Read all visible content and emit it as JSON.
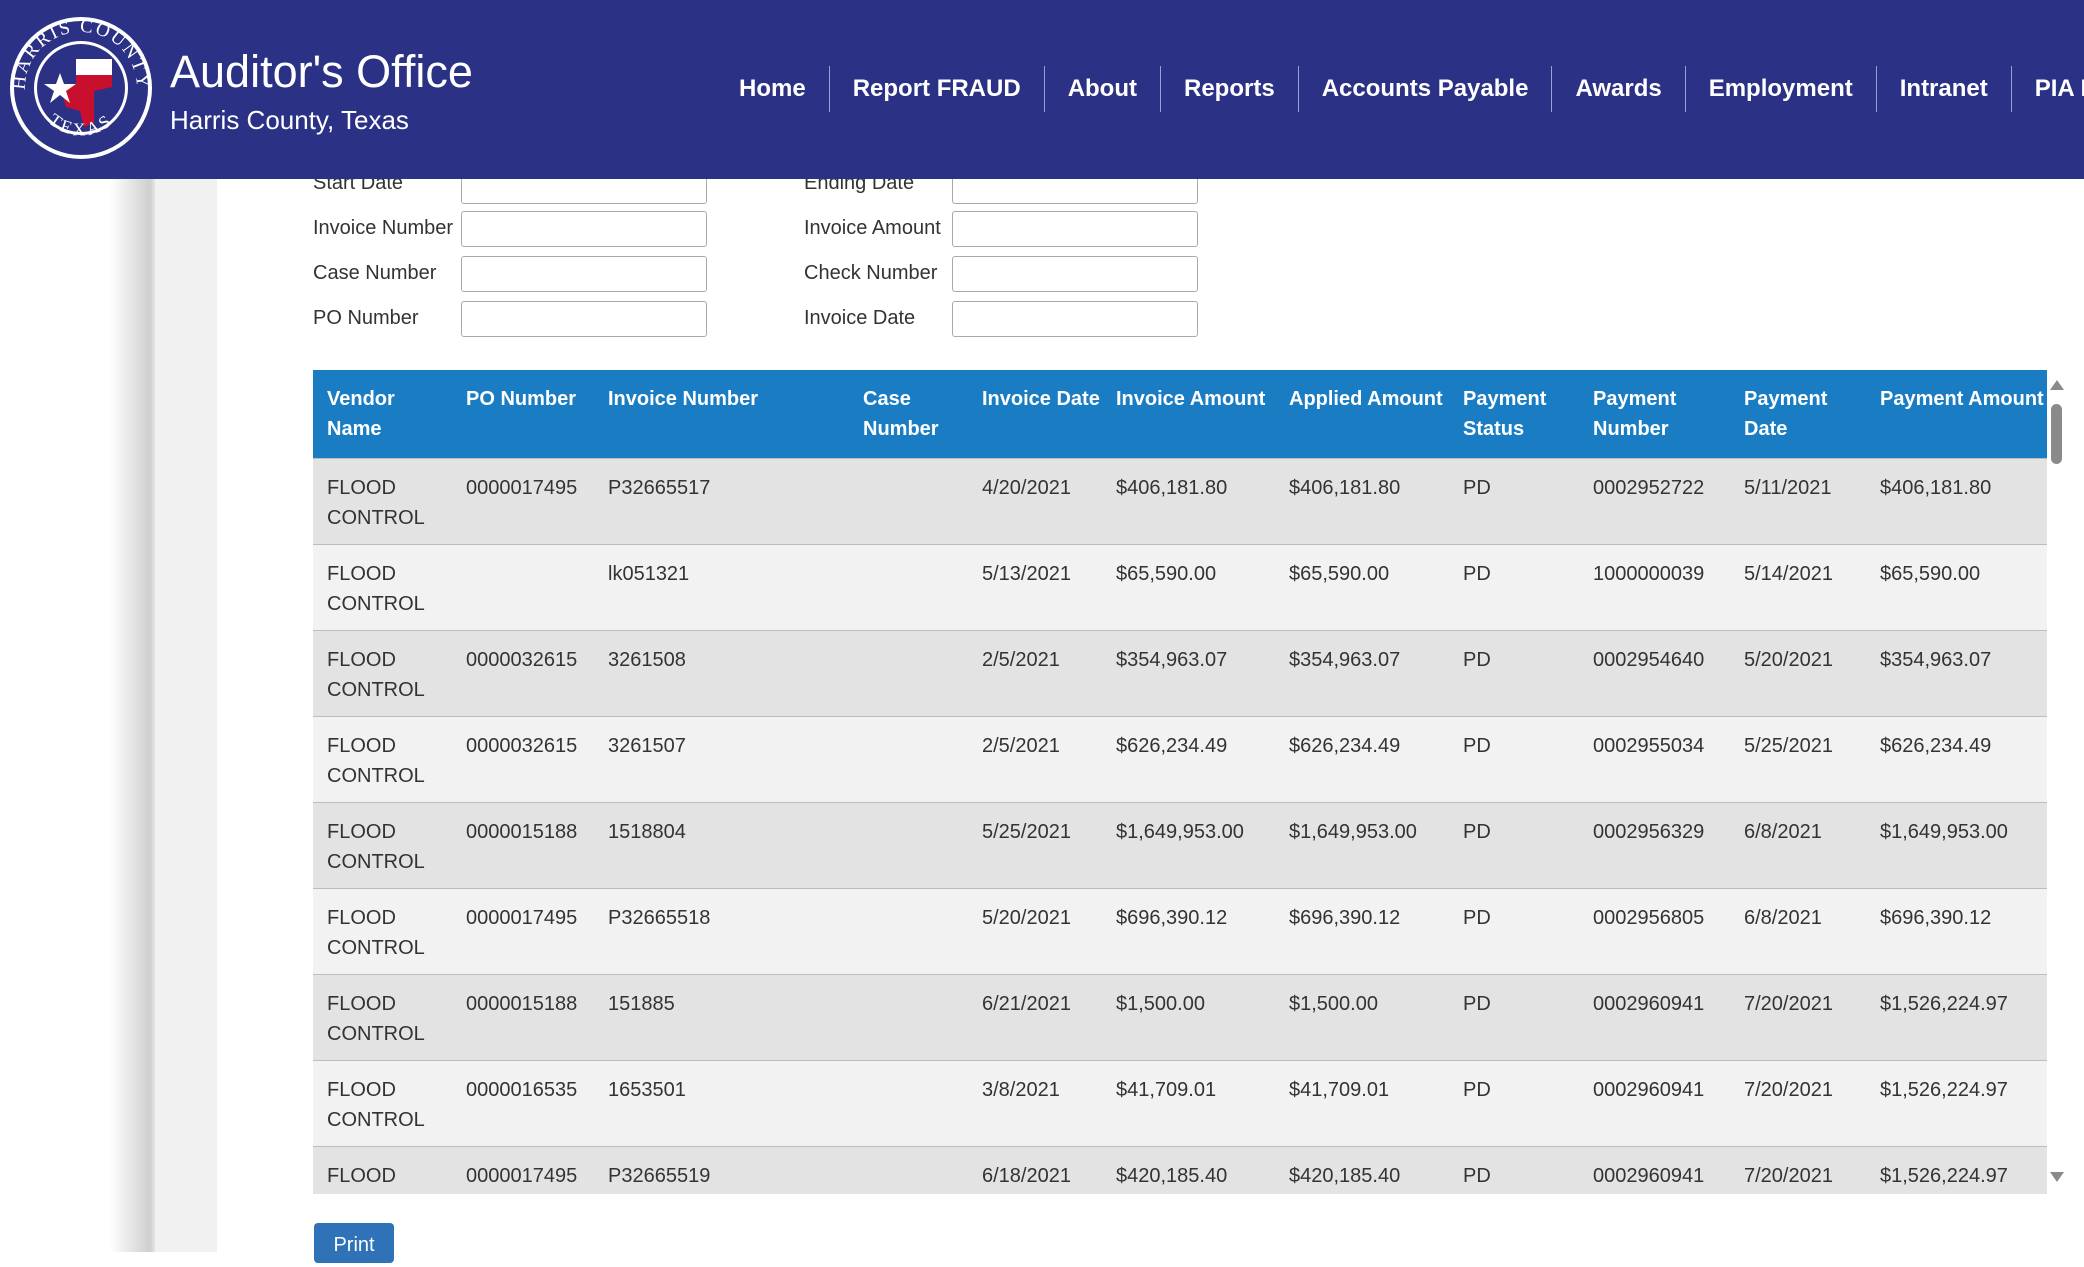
{
  "header": {
    "title": "Auditor's Office",
    "subtitle": "Harris County, Texas",
    "seal": {
      "top_text": "HARRIS COUNTY",
      "bottom_text": "TEXAS"
    },
    "background_color": "#2b3184",
    "nav": [
      "Home",
      "Report FRAUD",
      "About",
      "Reports",
      "Accounts Payable",
      "Awards",
      "Employment",
      "Intranet",
      "PIA R"
    ]
  },
  "search_form": {
    "start_date": {
      "label": "Start Date",
      "value": ""
    },
    "ending_date": {
      "label": "Ending Date",
      "value": ""
    },
    "invoice_number": {
      "label": "Invoice Number",
      "value": ""
    },
    "invoice_amount": {
      "label": "Invoice Amount",
      "value": ""
    },
    "case_number": {
      "label": "Case Number",
      "value": ""
    },
    "check_number": {
      "label": "Check Number",
      "value": ""
    },
    "po_number": {
      "label": "PO Number",
      "value": ""
    },
    "invoice_date": {
      "label": "Invoice Date",
      "value": ""
    }
  },
  "table": {
    "header_color": "#1a7dc4",
    "columns": [
      "Vendor Name",
      "PO Number",
      "Invoice Number",
      "Case Number",
      "Invoice Date",
      "Invoice Amount",
      "Applied Amount",
      "Payment Status",
      "Payment Number",
      "Payment Date",
      "Payment Amount"
    ],
    "rows": [
      [
        "FLOOD CONTROL",
        "0000017495",
        "P32665517",
        "",
        "4/20/2021",
        "$406,181.80",
        "$406,181.80",
        "PD",
        "0002952722",
        "5/11/2021",
        "$406,181.80"
      ],
      [
        "FLOOD CONTROL",
        "",
        "lk051321",
        "",
        "5/13/2021",
        "$65,590.00",
        "$65,590.00",
        "PD",
        "1000000039",
        "5/14/2021",
        "$65,590.00"
      ],
      [
        "FLOOD CONTROL",
        "0000032615",
        "3261508",
        "",
        "2/5/2021",
        "$354,963.07",
        "$354,963.07",
        "PD",
        "0002954640",
        "5/20/2021",
        "$354,963.07"
      ],
      [
        "FLOOD CONTROL",
        "0000032615",
        "3261507",
        "",
        "2/5/2021",
        "$626,234.49",
        "$626,234.49",
        "PD",
        "0002955034",
        "5/25/2021",
        "$626,234.49"
      ],
      [
        "FLOOD CONTROL",
        "0000015188",
        "1518804",
        "",
        "5/25/2021",
        "$1,649,953.00",
        "$1,649,953.00",
        "PD",
        "0002956329",
        "6/8/2021",
        "$1,649,953.00"
      ],
      [
        "FLOOD CONTROL",
        "0000017495",
        "P32665518",
        "",
        "5/20/2021",
        "$696,390.12",
        "$696,390.12",
        "PD",
        "0002956805",
        "6/8/2021",
        "$696,390.12"
      ],
      [
        "FLOOD CONTROL",
        "0000015188",
        "151885",
        "",
        "6/21/2021",
        "$1,500.00",
        "$1,500.00",
        "PD",
        "0002960941",
        "7/20/2021",
        "$1,526,224.97"
      ],
      [
        "FLOOD CONTROL",
        "0000016535",
        "1653501",
        "",
        "3/8/2021",
        "$41,709.01",
        "$41,709.01",
        "PD",
        "0002960941",
        "7/20/2021",
        "$1,526,224.97"
      ],
      [
        "FLOOD CONTROL",
        "0000017495",
        "P32665519",
        "",
        "6/18/2021",
        "$420,185.40",
        "$420,185.40",
        "PD",
        "0002960941",
        "7/20/2021",
        "$1,526,224.97"
      ]
    ]
  },
  "print_button": "Print"
}
